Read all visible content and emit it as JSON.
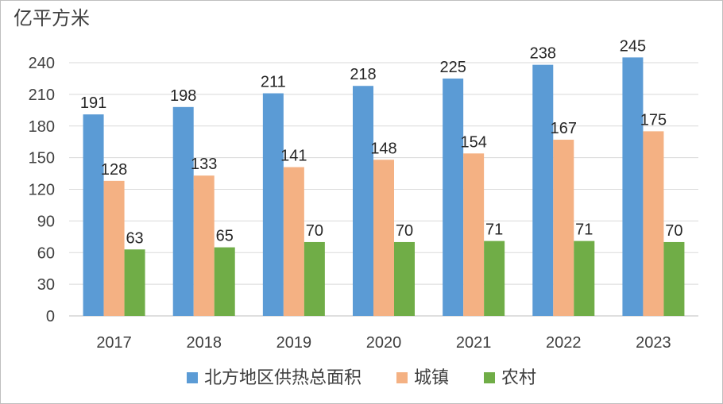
{
  "chart_data": {
    "type": "bar",
    "title": "",
    "unit_label": "亿平方米",
    "categories": [
      "2017",
      "2018",
      "2019",
      "2020",
      "2021",
      "2022",
      "2023"
    ],
    "series": [
      {
        "name": "北方地区供热总面积",
        "color": "#5b9bd5",
        "values": [
          191,
          198,
          211,
          218,
          225,
          238,
          245
        ]
      },
      {
        "name": "城镇",
        "color": "#f4b183",
        "values": [
          128,
          133,
          141,
          148,
          154,
          167,
          175
        ]
      },
      {
        "name": "农村",
        "color": "#70ad47",
        "values": [
          63,
          65,
          70,
          70,
          71,
          71,
          70
        ]
      }
    ],
    "ylim": [
      0,
      240
    ],
    "yticks": [
      0,
      30,
      60,
      90,
      120,
      150,
      180,
      210,
      240
    ],
    "grid": true,
    "legend_position": "bottom",
    "data_labels": true
  }
}
